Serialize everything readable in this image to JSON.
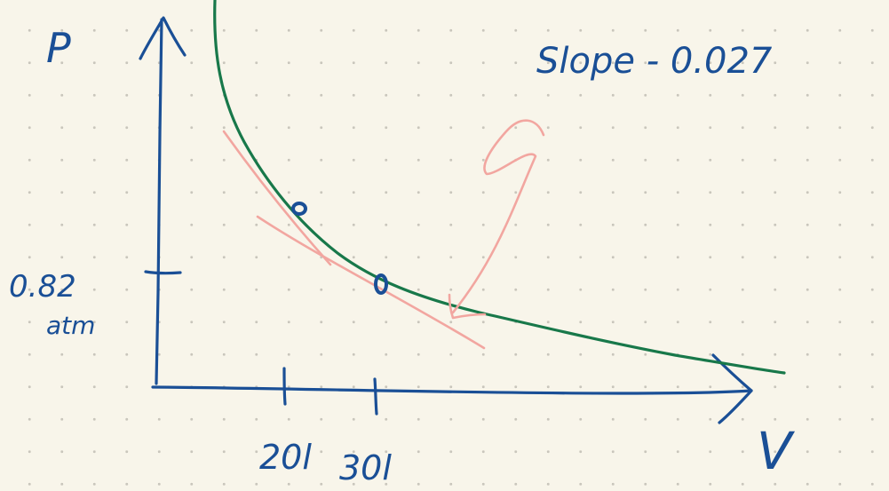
{
  "labels": {
    "p_axis": "P",
    "v_axis": "V",
    "slope": "Slope - 0.027",
    "pressure_value": "0.82",
    "pressure_unit": "atm",
    "tick_1": "20l",
    "tick_2": "30l"
  },
  "colors": {
    "axes": "#1a4f96",
    "curve": "#18784a",
    "tangent": "#f2a6a0",
    "points": "#1a4f96",
    "paper": "#f8f5ea"
  }
}
